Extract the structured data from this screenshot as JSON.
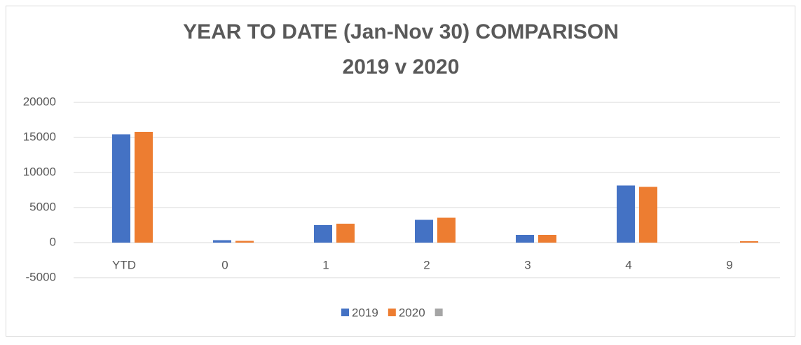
{
  "chart_data": {
    "type": "bar",
    "title": [
      "YEAR TO DATE (Jan-Nov 30) COMPARISON",
      "2019 v 2020"
    ],
    "categories": [
      "YTD",
      "0",
      "1",
      "2",
      "3",
      "4",
      "9"
    ],
    "series": [
      {
        "name": "2019",
        "color": "#4472c4",
        "values": [
          15450,
          350,
          2500,
          3250,
          1100,
          8150,
          0
        ]
      },
      {
        "name": "2020",
        "color": "#ed7d31",
        "values": [
          15800,
          250,
          2700,
          3550,
          1100,
          7950,
          200
        ]
      },
      {
        "name": null,
        "color": "#a5a5a5",
        "values": [
          null,
          null,
          null,
          null,
          null,
          null,
          null
        ]
      }
    ],
    "ylim": [
      -5000,
      20000
    ],
    "yticks": [
      -5000,
      0,
      5000,
      10000,
      15000,
      20000
    ],
    "grid": true,
    "legend": "bottom"
  }
}
